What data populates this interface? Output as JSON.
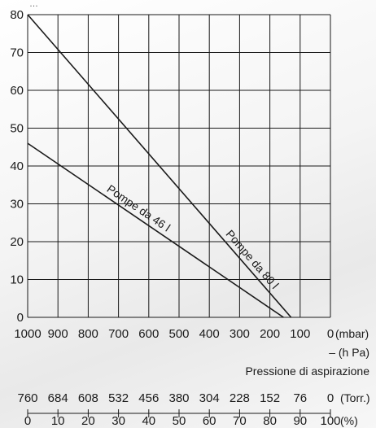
{
  "chart_data": {
    "type": "line",
    "top_caption": "…",
    "xlim": [
      1000,
      0
    ],
    "ylim": [
      0,
      80
    ],
    "grid": true,
    "y_ticks": [
      "0",
      "10",
      "20",
      "30",
      "40",
      "50",
      "60",
      "70",
      "80"
    ],
    "x_ticks_mbar": [
      "1000",
      "900",
      "800",
      "700",
      "600",
      "500",
      "400",
      "300",
      "200",
      "100",
      "0"
    ],
    "x_unit_mbar": "(mbar)",
    "x_unit_hpa": "– (h Pa)",
    "xlabel": "Pressione di aspirazione",
    "x_ticks_torr": [
      "760",
      "684",
      "608",
      "532",
      "456",
      "380",
      "304",
      "228",
      "152",
      "76",
      "0"
    ],
    "x_unit_torr": "(Torr.)",
    "x_ticks_percent": [
      "0",
      "10",
      "20",
      "30",
      "40",
      "50",
      "60",
      "70",
      "80",
      "90",
      "100"
    ],
    "x_unit_percent": "(%)",
    "series": [
      {
        "name": "Pompe da 80 l",
        "x": [
          1000,
          130
        ],
        "y": [
          80,
          0
        ],
        "label_at": 280
      },
      {
        "name": "Pompe da 46 l",
        "x": [
          1000,
          155
        ],
        "y": [
          46,
          0
        ],
        "label_at": 650
      }
    ]
  }
}
